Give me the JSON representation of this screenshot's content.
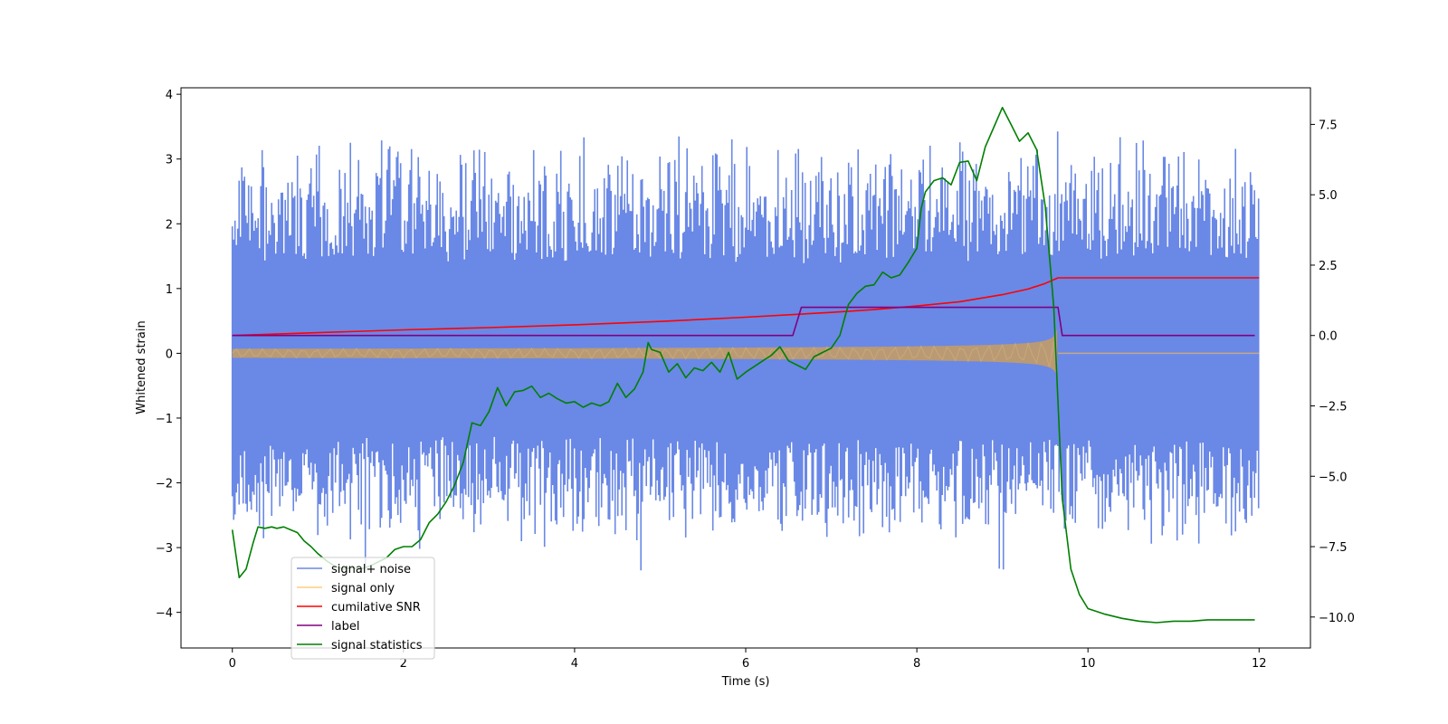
{
  "chart_data": {
    "type": "line",
    "xlabel": "Time (s)",
    "ylabel": "Whitened strain",
    "xlim": [
      -0.6,
      12.6
    ],
    "ylim_left": [
      -4.55,
      4.1
    ],
    "ylim_right": [
      -11.1,
      8.8
    ],
    "x_ticks": [
      0,
      2,
      4,
      6,
      8,
      10,
      12
    ],
    "x_tick_labels": [
      "0",
      "2",
      "4",
      "6",
      "8",
      "10",
      "12"
    ],
    "y_left_ticks": [
      4,
      3,
      2,
      1,
      0,
      -1,
      -2,
      -3,
      -4
    ],
    "y_left_tick_labels": [
      "4",
      "3",
      "2",
      "1",
      "0",
      "−1",
      "−2",
      "−3",
      "−4"
    ],
    "y_right_ticks": [
      7.5,
      5.0,
      2.5,
      0.0,
      -2.5,
      -5.0,
      -7.5,
      -10.0
    ],
    "y_right_tick_labels": [
      "7.5",
      "5.0",
      "2.5",
      "0.0",
      "−2.5",
      "−5.0",
      "−7.5",
      "−10.0"
    ],
    "legend_position": "lower-left",
    "series": [
      {
        "name": "signal+ noise",
        "axis": "left",
        "color": "#6a88e6",
        "kind": "noise",
        "x_range": [
          0,
          12
        ],
        "envelope": [
          -3.0,
          3.4
        ],
        "peak_max": 3.7,
        "peak_min": -4.15
      },
      {
        "name": "signal only",
        "axis": "left",
        "color": "#ffbf5a",
        "kind": "chirp",
        "x_range": [
          0,
          12
        ],
        "merger_time": 9.65,
        "amplitude_start": 0.07,
        "amplitude_peak": 1.4,
        "post_merger_value": 0.0
      },
      {
        "name": "cumilative SNR",
        "axis": "right",
        "color": "#ff0000",
        "x": [
          0,
          1,
          2,
          3,
          4,
          5,
          6,
          7,
          7.5,
          8,
          8.5,
          9,
          9.3,
          9.5,
          9.65,
          9.7,
          12
        ],
        "y": [
          0.0,
          0.1,
          0.2,
          0.28,
          0.38,
          0.5,
          0.65,
          0.82,
          0.92,
          1.05,
          1.2,
          1.45,
          1.65,
          1.85,
          2.05,
          2.05,
          2.05
        ]
      },
      {
        "name": "label",
        "axis": "right",
        "color": "#800080",
        "x": [
          0,
          6.55,
          6.65,
          9.65,
          9.7,
          11.95
        ],
        "y": [
          0,
          0,
          1,
          1,
          0,
          0
        ]
      },
      {
        "name": "signal statistics",
        "axis": "right",
        "color": "#008000",
        "x": [
          0,
          0.08,
          0.16,
          0.24,
          0.3,
          0.38,
          0.46,
          0.52,
          0.6,
          0.68,
          0.76,
          0.84,
          0.92,
          1.0,
          1.1,
          1.2,
          1.3,
          1.4,
          1.5,
          1.6,
          1.7,
          1.8,
          1.9,
          2.0,
          2.1,
          2.2,
          2.3,
          2.4,
          2.5,
          2.6,
          2.7,
          2.8,
          2.9,
          3.0,
          3.1,
          3.2,
          3.3,
          3.4,
          3.5,
          3.6,
          3.7,
          3.8,
          3.9,
          4.0,
          4.1,
          4.2,
          4.3,
          4.4,
          4.5,
          4.6,
          4.7,
          4.8,
          4.86,
          4.9,
          5.0,
          5.1,
          5.2,
          5.3,
          5.4,
          5.5,
          5.6,
          5.7,
          5.8,
          5.9,
          6.0,
          6.1,
          6.2,
          6.3,
          6.4,
          6.5,
          6.6,
          6.7,
          6.8,
          6.9,
          7.0,
          7.1,
          7.2,
          7.3,
          7.4,
          7.5,
          7.6,
          7.7,
          7.8,
          7.9,
          8.0,
          8.05,
          8.1,
          8.2,
          8.3,
          8.4,
          8.5,
          8.6,
          8.7,
          8.8,
          8.9,
          9.0,
          9.1,
          9.2,
          9.3,
          9.4,
          9.5,
          9.6,
          9.7,
          9.8,
          9.9,
          10.0,
          10.2,
          10.4,
          10.6,
          10.8,
          11.0,
          11.2,
          11.4,
          11.6,
          11.8,
          11.95
        ],
        "y": [
          -6.9,
          -8.6,
          -8.3,
          -7.4,
          -6.8,
          -6.85,
          -6.8,
          -6.85,
          -6.8,
          -6.9,
          -7.0,
          -7.3,
          -7.5,
          -7.75,
          -8.0,
          -8.2,
          -8.3,
          -8.25,
          -8.3,
          -8.2,
          -8.05,
          -7.9,
          -7.6,
          -7.5,
          -7.5,
          -7.25,
          -6.65,
          -6.35,
          -5.9,
          -5.3,
          -4.5,
          -3.1,
          -3.2,
          -2.7,
          -1.85,
          -2.5,
          -2.0,
          -1.95,
          -1.8,
          -2.2,
          -2.05,
          -2.25,
          -2.4,
          -2.35,
          -2.55,
          -2.4,
          -2.5,
          -2.35,
          -1.7,
          -2.2,
          -1.9,
          -1.3,
          -0.25,
          -0.5,
          -0.6,
          -1.3,
          -1.0,
          -1.5,
          -1.15,
          -1.25,
          -0.95,
          -1.3,
          -0.6,
          -1.55,
          -1.3,
          -1.1,
          -0.9,
          -0.7,
          -0.4,
          -0.9,
          -1.05,
          -1.2,
          -0.75,
          -0.6,
          -0.45,
          0.0,
          1.1,
          1.5,
          1.75,
          1.8,
          2.25,
          2.05,
          2.15,
          2.6,
          3.1,
          4.5,
          5.1,
          5.5,
          5.6,
          5.35,
          6.15,
          6.2,
          5.5,
          6.7,
          7.4,
          8.1,
          7.5,
          6.9,
          7.2,
          6.6,
          4.6,
          1.0,
          -5.8,
          -8.3,
          -9.2,
          -9.7,
          -9.9,
          -10.05,
          -10.15,
          -10.2,
          -10.15,
          -10.15,
          -10.1,
          -10.1,
          -10.1,
          -10.1
        ]
      }
    ]
  }
}
